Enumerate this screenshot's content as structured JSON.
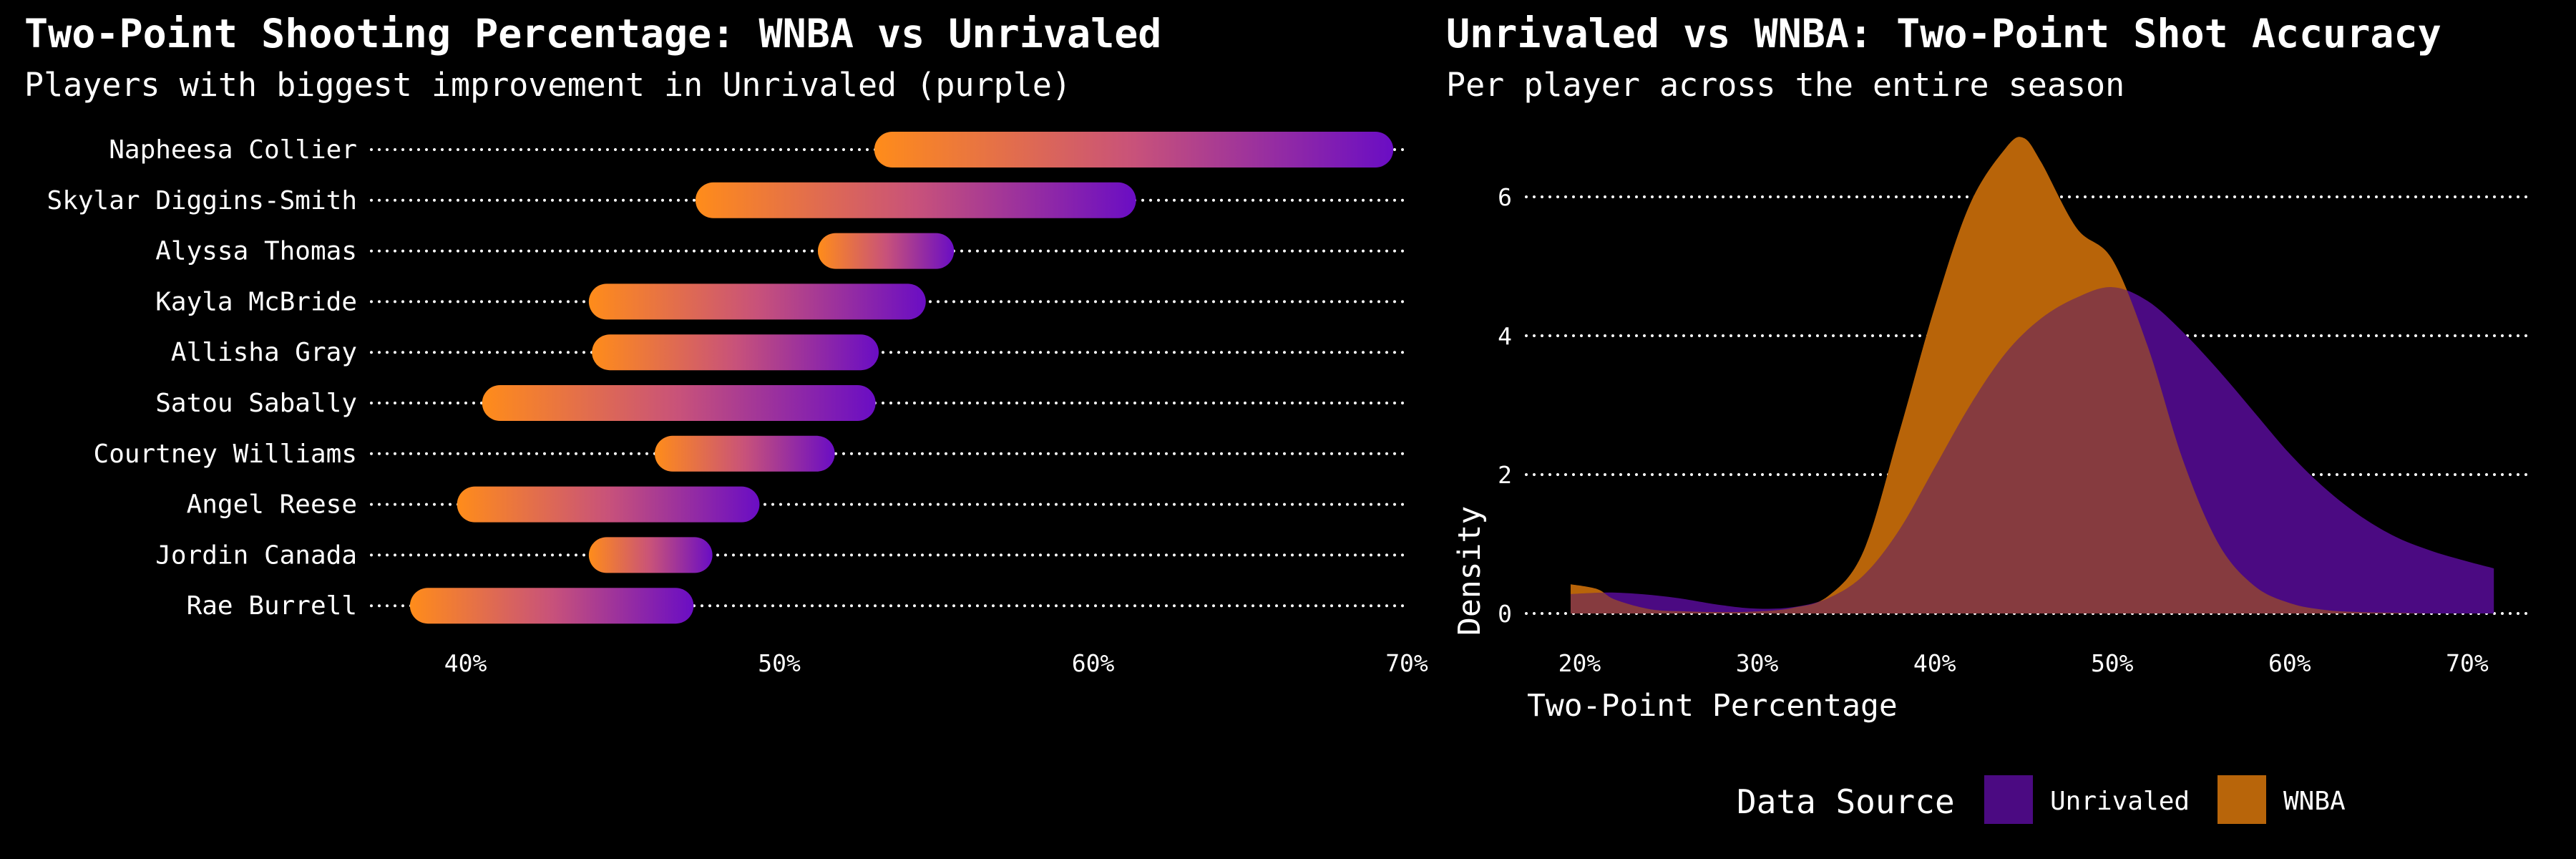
{
  "colors": {
    "background": "#000000",
    "wnba": "#FF8C1A",
    "unrivaled": "#6A0DC4",
    "wnba_area": "#B8650A",
    "unrivaled_area": "#4B0A82",
    "overlap_area": "#C9622A",
    "grid": "#FFFFFF"
  },
  "chart_data": [
    {
      "type": "dumbbell",
      "title": "Two-Point Shooting Percentage: WNBA vs Unrivaled",
      "subtitle": "Players with biggest improvement in Unrivaled (purple)",
      "xlim": [
        0.37,
        0.7
      ],
      "xticks": [
        0.4,
        0.5,
        0.6,
        0.7
      ],
      "xtick_labels": [
        "40%",
        "50%",
        "60%",
        "70%"
      ],
      "players": [
        {
          "name": "Napheesa Collier",
          "wnba": 0.536,
          "unrivaled": 0.69
        },
        {
          "name": "Skylar Diggins-Smith",
          "wnba": 0.479,
          "unrivaled": 0.608
        },
        {
          "name": "Alyssa Thomas",
          "wnba": 0.518,
          "unrivaled": 0.55
        },
        {
          "name": "Kayla McBride",
          "wnba": 0.445,
          "unrivaled": 0.541
        },
        {
          "name": "Allisha Gray",
          "wnba": 0.446,
          "unrivaled": 0.526
        },
        {
          "name": "Satou Sabally",
          "wnba": 0.411,
          "unrivaled": 0.525
        },
        {
          "name": "Courtney Williams",
          "wnba": 0.466,
          "unrivaled": 0.512
        },
        {
          "name": "Angel Reese",
          "wnba": 0.403,
          "unrivaled": 0.488
        },
        {
          "name": "Jordin Canada",
          "wnba": 0.445,
          "unrivaled": 0.473
        },
        {
          "name": "Rae Burrell",
          "wnba": 0.388,
          "unrivaled": 0.467
        }
      ]
    },
    {
      "type": "area",
      "title": "Unrivaled vs WNBA: Two-Point Shot Accuracy",
      "subtitle": "Per player across the entire season",
      "xlabel": "Two-Point Percentage",
      "ylabel": "Density",
      "xlim": [
        0.17,
        0.725
      ],
      "ylim": [
        -0.2,
        7.2
      ],
      "xticks": [
        0.2,
        0.3,
        0.4,
        0.5,
        0.6,
        0.7
      ],
      "xtick_labels": [
        "20%",
        "30%",
        "40%",
        "50%",
        "60%",
        "70%"
      ],
      "yticks": [
        0,
        2,
        4,
        6
      ],
      "ytick_labels": [
        "0",
        "2",
        "4",
        "6"
      ],
      "legend_title": "Data Source",
      "series": [
        {
          "name": "Unrivaled",
          "x": [
            0.195,
            0.22,
            0.25,
            0.28,
            0.3,
            0.32,
            0.34,
            0.36,
            0.38,
            0.4,
            0.42,
            0.44,
            0.46,
            0.48,
            0.5,
            0.52,
            0.54,
            0.56,
            0.58,
            0.6,
            0.62,
            0.64,
            0.66,
            0.68,
            0.7,
            0.715
          ],
          "y": [
            0.28,
            0.3,
            0.24,
            0.12,
            0.07,
            0.09,
            0.22,
            0.55,
            1.2,
            2.1,
            3.0,
            3.75,
            4.25,
            4.55,
            4.7,
            4.5,
            4.05,
            3.5,
            2.9,
            2.3,
            1.8,
            1.4,
            1.1,
            0.9,
            0.75,
            0.65
          ]
        },
        {
          "name": "WNBA",
          "x": [
            0.195,
            0.21,
            0.22,
            0.24,
            0.26,
            0.28,
            0.3,
            0.32,
            0.34,
            0.36,
            0.38,
            0.4,
            0.42,
            0.44,
            0.45,
            0.46,
            0.48,
            0.5,
            0.52,
            0.54,
            0.56,
            0.58,
            0.6,
            0.62,
            0.64,
            0.66,
            0.68
          ],
          "y": [
            0.42,
            0.35,
            0.2,
            0.06,
            0.03,
            0.02,
            0.03,
            0.08,
            0.25,
            0.9,
            2.6,
            4.4,
            5.9,
            6.7,
            6.85,
            6.5,
            5.55,
            5.1,
            3.85,
            2.2,
            1.0,
            0.4,
            0.15,
            0.05,
            0.02,
            0.01,
            0.0
          ]
        }
      ]
    }
  ]
}
